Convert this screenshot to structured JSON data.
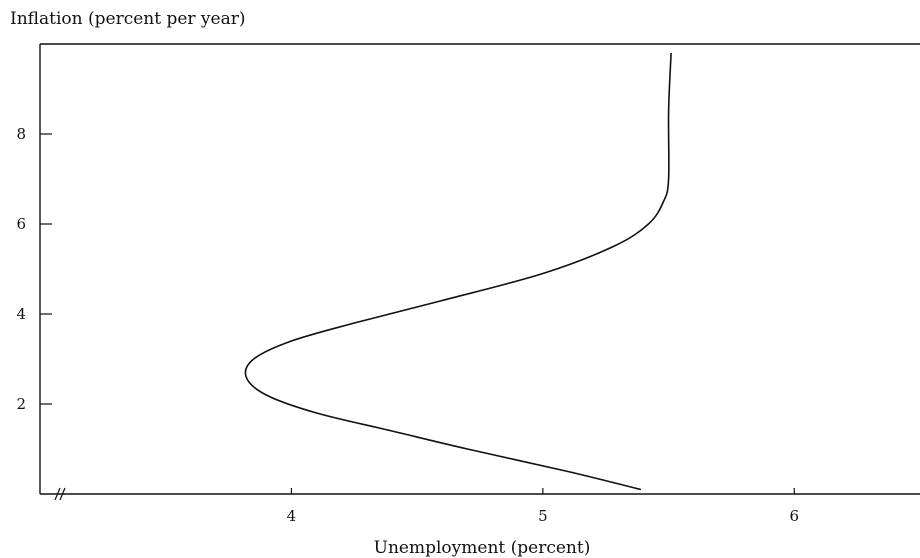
{
  "chart_data": {
    "type": "line",
    "title": "",
    "ylabel": "Inflation (percent per year)",
    "xlabel": "Unemployment (percent)",
    "xlim": [
      3,
      6.5
    ],
    "ylim": [
      0,
      10
    ],
    "x_ticks": [
      4,
      5,
      6
    ],
    "y_ticks": [
      2,
      4,
      6,
      8
    ],
    "axis_break": "x-axis near origin",
    "grid": false,
    "series": [
      {
        "x": [
          5.39,
          5.1,
          4.7,
          4.4,
          4.1,
          3.9,
          3.82,
          3.85,
          4.0,
          4.25,
          4.6,
          5.0,
          5.28,
          5.42,
          5.48,
          5.5,
          5.5,
          5.51
        ],
        "y": [
          0.1,
          0.5,
          1.0,
          1.4,
          1.8,
          2.2,
          2.6,
          3.0,
          3.4,
          3.8,
          4.3,
          4.9,
          5.5,
          6.0,
          6.5,
          7.0,
          8.5,
          9.8
        ]
      }
    ]
  }
}
